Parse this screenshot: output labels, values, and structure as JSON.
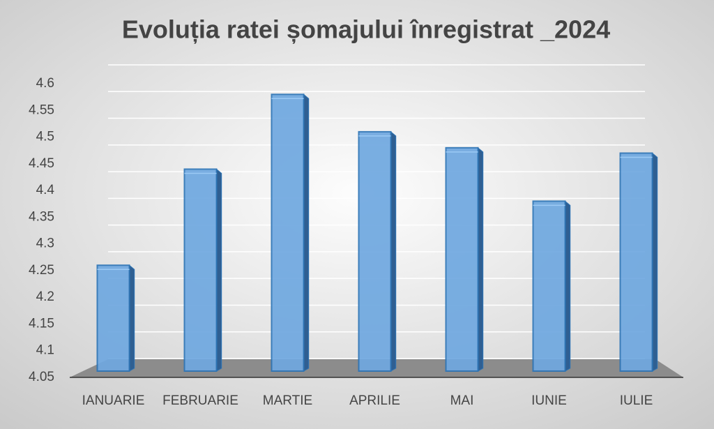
{
  "chart_data": {
    "type": "bar",
    "title": "Evoluția ratei șomajului înregistrat _2024",
    "categories": [
      "IANUARIE",
      "FEBRUARIE",
      "MARTIE",
      "APRILIE",
      "MAI",
      "IUNIE",
      "IULIE"
    ],
    "values": [
      4.26,
      4.44,
      4.58,
      4.51,
      4.48,
      4.38,
      4.47
    ],
    "color": "#6fa8e0",
    "ylim": [
      4.05,
      4.6
    ],
    "yticks": [
      4.05,
      4.1,
      4.15,
      4.2,
      4.25,
      4.3,
      4.35,
      4.4,
      4.45,
      4.5,
      4.55,
      4.6
    ],
    "grid": true
  }
}
